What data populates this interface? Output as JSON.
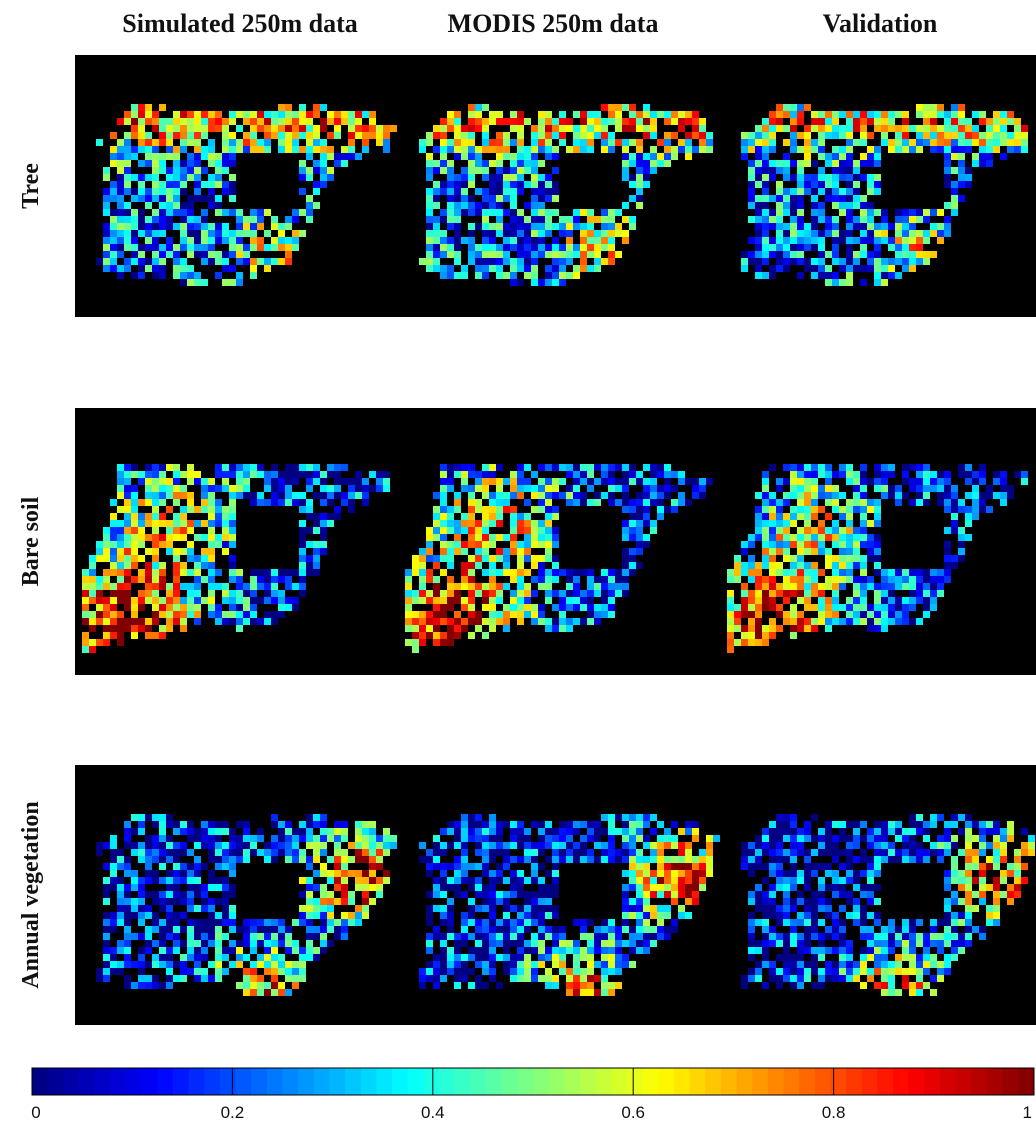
{
  "columns": [
    "Simulated 250m data",
    "MODIS 250m data",
    "Validation"
  ],
  "rows": [
    "Tree",
    "Bare soil",
    "Annual vegetation"
  ],
  "colorbar": {
    "range": [
      0,
      1
    ],
    "ticks": [
      0,
      0.2,
      0.4,
      0.6,
      0.8,
      1
    ]
  }
}
